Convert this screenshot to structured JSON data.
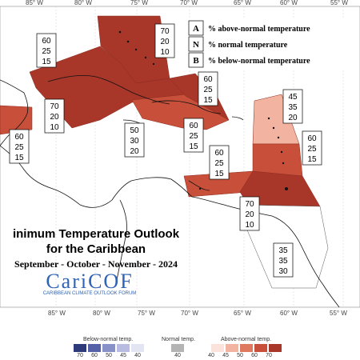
{
  "map": {
    "lon_ticks_top": [
      "85° W",
      "80° W",
      "75° W",
      "70° W",
      "65° W",
      "60° W",
      "55° W"
    ],
    "lon_ticks_bottom": [
      "85° W",
      "80° W",
      "75° W",
      "70° W",
      "65° W",
      "60° W",
      "55° W"
    ]
  },
  "legend_key": {
    "rows": [
      {
        "letter": "A",
        "text": "% above-normal temperature"
      },
      {
        "letter": "N",
        "text": "% normal temperature"
      },
      {
        "letter": "B",
        "text": "% below-normal temperature"
      }
    ]
  },
  "probabilities": [
    {
      "region": "bahamas",
      "values": [
        "70",
        "20",
        "10"
      ]
    },
    {
      "region": "cuba-west",
      "values": [
        "60",
        "25",
        "15"
      ]
    },
    {
      "region": "cuba-central",
      "values": [
        "70",
        "20",
        "10"
      ]
    },
    {
      "region": "belize",
      "values": [
        "60",
        "25",
        "15"
      ]
    },
    {
      "region": "cayman",
      "values": [
        "50",
        "30",
        "20"
      ]
    },
    {
      "region": "hispaniola",
      "values": [
        "60",
        "25",
        "15"
      ]
    },
    {
      "region": "haiti-jamaica",
      "values": [
        "60",
        "25",
        "15"
      ]
    },
    {
      "region": "puerto-rico",
      "values": [
        "60",
        "25",
        "15"
      ]
    },
    {
      "region": "leeward",
      "values": [
        "45",
        "35",
        "20"
      ]
    },
    {
      "region": "windward",
      "values": [
        "60",
        "25",
        "15"
      ]
    },
    {
      "region": "trinidad",
      "values": [
        "70",
        "20",
        "10"
      ]
    },
    {
      "region": "guianas",
      "values": [
        "35",
        "35",
        "30"
      ]
    }
  ],
  "title": {
    "line1": "inimum Temperature Outlook",
    "line2": "for the Caribbean",
    "line3": "September - October - November - 2024"
  },
  "logo": {
    "name": "CariCOF",
    "subtitle": "CARIBBEAN CLIMATE OUTLOOK FORUM"
  },
  "colorbar": {
    "below_label": "Below-normal temp.",
    "normal_label": "Normal temp.",
    "above_label": "Above-normal temp.",
    "below_ticks": [
      "70",
      "60",
      "50",
      "45",
      "40"
    ],
    "normal_tick": "40",
    "above_ticks": [
      "40",
      "45",
      "50",
      "60",
      "70"
    ],
    "below_colors": [
      "#2f3a7a",
      "#5562a8",
      "#8891c8",
      "#b7bce0",
      "#e3e5f3"
    ],
    "normal_color": "#b4b4b4",
    "above_colors": [
      "#fbe3dc",
      "#f2b3a0",
      "#e07a5f",
      "#c8503a",
      "#a8372a"
    ]
  },
  "colors": {
    "above_45": "#f2b3a0",
    "above_60": "#c8503a",
    "above_70": "#a8372a",
    "above_35": "#ffffff"
  }
}
